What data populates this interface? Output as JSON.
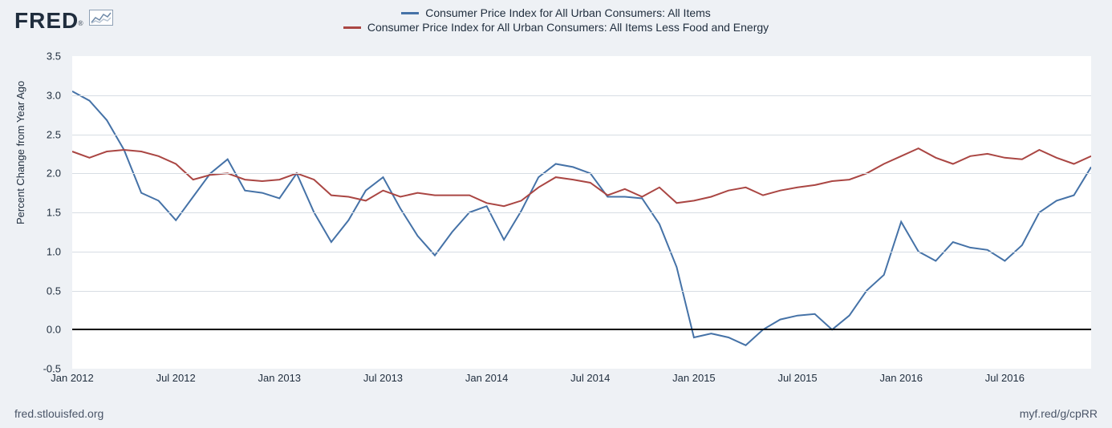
{
  "logo_text": "FRED",
  "chart": {
    "type": "line",
    "background_color": "#eef1f5",
    "plot_background_color": "#ffffff",
    "grid_color": "#d7dde4",
    "zero_line_color": "#000000",
    "zero_line_width": 2,
    "line_width": 2,
    "title_fontsize": 14,
    "ylabel": "Percent Change from Year Ago",
    "ylabel_fontsize": 13,
    "ylim": [
      -0.5,
      3.5
    ],
    "ytick_step": 0.5,
    "xticks": [
      {
        "i": 0,
        "label": "Jan 2012"
      },
      {
        "i": 6,
        "label": "Jul 2012"
      },
      {
        "i": 12,
        "label": "Jan 2013"
      },
      {
        "i": 18,
        "label": "Jul 2013"
      },
      {
        "i": 24,
        "label": "Jan 2014"
      },
      {
        "i": 30,
        "label": "Jul 2014"
      },
      {
        "i": 36,
        "label": "Jan 2015"
      },
      {
        "i": 42,
        "label": "Jul 2015"
      },
      {
        "i": 48,
        "label": "Jan 2016"
      },
      {
        "i": 54,
        "label": "Jul 2016"
      }
    ],
    "n_points": 60,
    "series": [
      {
        "name": "Consumer Price Index for All Urban Consumers: All Items",
        "color": "#4572a7",
        "values": [
          3.05,
          2.93,
          2.68,
          2.3,
          1.75,
          1.65,
          1.4,
          1.7,
          2.0,
          2.18,
          1.78,
          1.75,
          1.68,
          2.0,
          1.5,
          1.12,
          1.4,
          1.78,
          1.95,
          1.55,
          1.2,
          0.95,
          1.25,
          1.5,
          1.58,
          1.15,
          1.52,
          1.95,
          2.12,
          2.08,
          2.0,
          1.7,
          1.7,
          1.68,
          1.35,
          0.8,
          -0.1,
          -0.05,
          -0.1,
          -0.2,
          0.0,
          0.13,
          0.18,
          0.2,
          0.0,
          0.18,
          0.5,
          0.7,
          1.38,
          1.0,
          0.88,
          1.12,
          1.05,
          1.02,
          0.88,
          1.08,
          1.5,
          1.65,
          1.72,
          2.08
        ]
      },
      {
        "name": "Consumer Price Index for All Urban Consumers: All Items Less Food and Energy",
        "color": "#aa4643",
        "values": [
          2.28,
          2.2,
          2.28,
          2.3,
          2.28,
          2.22,
          2.12,
          1.92,
          1.98,
          2.0,
          1.92,
          1.9,
          1.92,
          2.0,
          1.92,
          1.72,
          1.7,
          1.65,
          1.78,
          1.7,
          1.75,
          1.72,
          1.72,
          1.72,
          1.62,
          1.58,
          1.65,
          1.82,
          1.95,
          1.92,
          1.88,
          1.72,
          1.8,
          1.7,
          1.82,
          1.62,
          1.65,
          1.7,
          1.78,
          1.82,
          1.72,
          1.78,
          1.82,
          1.85,
          1.9,
          1.92,
          2.0,
          2.12,
          2.22,
          2.32,
          2.2,
          2.12,
          2.22,
          2.25,
          2.2,
          2.18,
          2.3,
          2.2,
          2.12,
          2.22
        ]
      }
    ]
  },
  "footer_left": "fred.stlouisfed.org",
  "footer_right": "myf.red/g/cpRR"
}
